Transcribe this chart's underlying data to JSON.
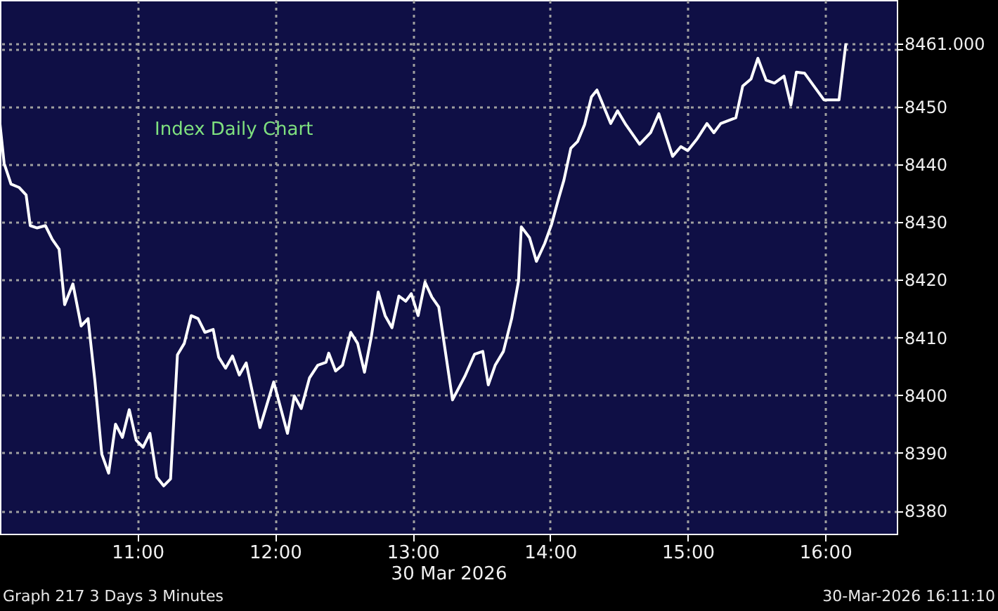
{
  "chart_data": {
    "type": "line",
    "title": "Index Daily Chart",
    "xlabel": "30 Mar 2026",
    "x": [
      10.0,
      10.03,
      10.08,
      10.14,
      10.19,
      10.22,
      10.27,
      10.33,
      10.38,
      10.43,
      10.47,
      10.53,
      10.59,
      10.64,
      10.69,
      10.74,
      10.79,
      10.84,
      10.89,
      10.94,
      10.99,
      11.04,
      11.09,
      11.14,
      11.19,
      11.24,
      11.29,
      11.34,
      11.39,
      11.44,
      11.49,
      11.55,
      11.59,
      11.64,
      11.69,
      11.74,
      11.79,
      11.89,
      11.99,
      12.09,
      12.14,
      12.19,
      12.25,
      12.31,
      12.37,
      12.39,
      12.44,
      12.49,
      12.55,
      12.6,
      12.65,
      12.7,
      12.75,
      12.8,
      12.85,
      12.9,
      12.95,
      12.99,
      13.04,
      13.09,
      13.14,
      13.19,
      13.29,
      13.38,
      13.45,
      13.51,
      13.55,
      13.6,
      13.66,
      13.72,
      13.77,
      13.79,
      13.85,
      13.9,
      13.96,
      14.01,
      14.06,
      14.1,
      14.15,
      14.2,
      14.25,
      14.3,
      14.34,
      14.44,
      14.49,
      14.55,
      14.65,
      14.73,
      14.79,
      14.89,
      14.95,
      15.0,
      15.07,
      15.14,
      15.19,
      15.24,
      15.35,
      15.4,
      15.46,
      15.51,
      15.57,
      15.63,
      15.7,
      15.75,
      15.79,
      15.85,
      15.99,
      16.1,
      16.15
    ],
    "series": [
      {
        "color": "#ffffff",
        "values": [
          8447.0,
          8440.2,
          8436.6,
          8436.0,
          8434.7,
          8429.4,
          8429.0,
          8429.4,
          8427.0,
          8425.3,
          8415.7,
          8419.3,
          8412.0,
          8413.3,
          8402.5,
          8389.8,
          8386.5,
          8395.0,
          8392.7,
          8397.5,
          8392.2,
          8391.0,
          8393.4,
          8385.8,
          8384.3,
          8385.5,
          8407.0,
          8409.0,
          8413.8,
          8413.3,
          8410.9,
          8411.4,
          8406.6,
          8404.7,
          8406.8,
          8403.5,
          8405.6,
          8394.4,
          8402.3,
          8393.4,
          8399.9,
          8397.7,
          8403.0,
          8405.2,
          8405.7,
          8407.3,
          8404.2,
          8405.2,
          8410.9,
          8409.0,
          8404.0,
          8410.2,
          8417.9,
          8413.8,
          8411.7,
          8417.2,
          8416.3,
          8417.6,
          8413.8,
          8419.6,
          8417.0,
          8415.3,
          8399.2,
          8403.3,
          8407.1,
          8407.6,
          8401.8,
          8405.2,
          8407.6,
          8413.3,
          8419.8,
          8429.2,
          8427.3,
          8423.2,
          8426.3,
          8429.6,
          8434.0,
          8437.3,
          8442.8,
          8444.0,
          8446.9,
          8451.7,
          8452.9,
          8447.1,
          8449.3,
          8446.9,
          8443.5,
          8445.5,
          8448.8,
          8441.4,
          8443.1,
          8442.4,
          8444.5,
          8447.1,
          8445.5,
          8447.1,
          8448.1,
          8453.6,
          8454.8,
          8458.4,
          8454.6,
          8454.1,
          8455.3,
          8450.3,
          8456.0,
          8455.8,
          8451.2,
          8451.2,
          8461.0
        ]
      }
    ],
    "xlim": [
      10.0,
      16.52
    ],
    "ylim": [
      8376,
      8468.5
    ],
    "xticks": [
      {
        "value": 11,
        "label": "11:00"
      },
      {
        "value": 12,
        "label": "12:00"
      },
      {
        "value": 13,
        "label": "13:00"
      },
      {
        "value": 14,
        "label": "14:00"
      },
      {
        "value": 15,
        "label": "15:00"
      },
      {
        "value": 16,
        "label": "16:00"
      }
    ],
    "yticks": [
      8380,
      8390,
      8400,
      8410,
      8420,
      8430,
      8440,
      8450,
      {
        "value": 8460,
        "label": null
      },
      {
        "value": 8461,
        "label": "8461.000"
      }
    ],
    "grid": true,
    "marker": "none",
    "line_style": "solid",
    "annotations": [
      "Graph 217 3 Days 3 Minutes",
      "30-Mar-2026 16:11:10"
    ]
  }
}
